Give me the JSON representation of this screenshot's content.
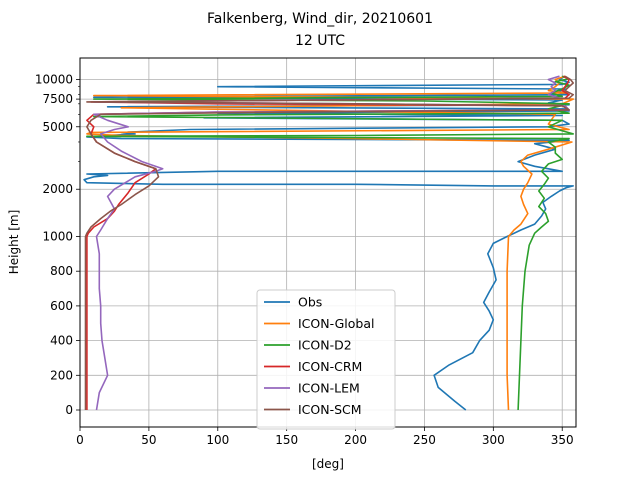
{
  "chart_data": {
    "type": "line",
    "title_line1": "Falkenberg, Wind_dir, 20210601",
    "title_line2": "12 UTC",
    "xlabel": "[deg]",
    "ylabel": "Height [m]",
    "xlim": [
      0,
      360
    ],
    "xticks": [
      0,
      50,
      100,
      150,
      200,
      250,
      300,
      350
    ],
    "yscale": "linear below 1000 m, logarithmic above",
    "yticks": [
      0,
      200,
      400,
      600,
      800,
      1000,
      2000,
      5000,
      7500,
      10000
    ],
    "grid": true,
    "legend_position": "lower center",
    "series": [
      {
        "name": "Obs",
        "color": "#1f77b4",
        "points": [
          [
            280,
            0
          ],
          [
            272,
            50
          ],
          [
            260,
            130
          ],
          [
            257,
            200
          ],
          [
            268,
            260
          ],
          [
            285,
            330
          ],
          [
            290,
            400
          ],
          [
            297,
            460
          ],
          [
            300,
            520
          ],
          [
            297,
            570
          ],
          [
            293,
            620
          ],
          [
            297,
            680
          ],
          [
            302,
            750
          ],
          [
            300,
            820
          ],
          [
            296,
            900
          ],
          [
            300,
            960
          ],
          [
            310,
            1000
          ],
          [
            320,
            1100
          ],
          [
            330,
            1200
          ],
          [
            335,
            1350
          ],
          [
            338,
            1500
          ],
          [
            336,
            1650
          ],
          [
            342,
            1800
          ],
          [
            348,
            1950
          ],
          [
            353,
            2050
          ],
          [
            358,
            2100
          ],
          [
            300,
            2100
          ],
          [
            200,
            2150
          ],
          [
            60,
            2150
          ],
          [
            5,
            2200
          ],
          [
            3,
            2300
          ],
          [
            10,
            2400
          ],
          [
            20,
            2450
          ],
          [
            5,
            2500
          ],
          [
            100,
            2600
          ],
          [
            350,
            2600
          ],
          [
            330,
            2800
          ],
          [
            318,
            3000
          ],
          [
            330,
            3300
          ],
          [
            345,
            3600
          ],
          [
            330,
            3900
          ],
          [
            355,
            4100
          ],
          [
            30,
            4200
          ],
          [
            5,
            4300
          ],
          [
            20,
            4400
          ],
          [
            40,
            4500
          ],
          [
            30,
            4600
          ],
          [
            80,
            4800
          ],
          [
            340,
            5000
          ],
          [
            355,
            5200
          ],
          [
            350,
            5500
          ],
          [
            90,
            5700
          ],
          [
            350,
            5900
          ],
          [
            100,
            6100
          ],
          [
            355,
            6300
          ],
          [
            352,
            6500
          ],
          [
            20,
            6700
          ],
          [
            355,
            6900
          ],
          [
            340,
            7100
          ],
          [
            350,
            7400
          ],
          [
            10,
            7700
          ],
          [
            355,
            8000
          ],
          [
            345,
            8300
          ],
          [
            353,
            8700
          ],
          [
            100,
            9000
          ],
          [
            350,
            9300
          ],
          [
            355,
            9600
          ],
          [
            348,
            10000
          ],
          [
            352,
            10500
          ]
        ]
      },
      {
        "name": "ICON-Global",
        "color": "#ff7f0e",
        "points": [
          [
            311,
            0
          ],
          [
            310,
            200
          ],
          [
            310,
            400
          ],
          [
            310,
            600
          ],
          [
            310,
            800
          ],
          [
            311,
            1000
          ],
          [
            315,
            1100
          ],
          [
            320,
            1200
          ],
          [
            325,
            1400
          ],
          [
            322,
            1600
          ],
          [
            320,
            1800
          ],
          [
            322,
            2000
          ],
          [
            325,
            2200
          ],
          [
            328,
            2500
          ],
          [
            322,
            2800
          ],
          [
            320,
            3000
          ],
          [
            325,
            3300
          ],
          [
            340,
            3600
          ],
          [
            357,
            4000
          ],
          [
            200,
            4200
          ],
          [
            30,
            4400
          ],
          [
            5,
            4500
          ],
          [
            8,
            4600
          ],
          [
            355,
            4800
          ],
          [
            340,
            5200
          ],
          [
            345,
            6000
          ],
          [
            30,
            6600
          ],
          [
            350,
            7000
          ],
          [
            358,
            7500
          ],
          [
            200,
            7700
          ],
          [
            10,
            7900
          ],
          [
            353,
            8200
          ],
          [
            340,
            8500
          ],
          [
            345,
            9000
          ],
          [
            348,
            9500
          ],
          [
            345,
            10000
          ],
          [
            352,
            10500
          ]
        ]
      },
      {
        "name": "ICON-D2",
        "color": "#2ca02c",
        "points": [
          [
            318,
            0
          ],
          [
            319,
            200
          ],
          [
            320,
            400
          ],
          [
            321,
            600
          ],
          [
            323,
            800
          ],
          [
            326,
            950
          ],
          [
            330,
            1050
          ],
          [
            335,
            1150
          ],
          [
            340,
            1250
          ],
          [
            338,
            1400
          ],
          [
            333,
            1550
          ],
          [
            337,
            1750
          ],
          [
            333,
            1950
          ],
          [
            337,
            2150
          ],
          [
            340,
            2350
          ],
          [
            335,
            2600
          ],
          [
            340,
            2900
          ],
          [
            350,
            3100
          ],
          [
            345,
            3400
          ],
          [
            345,
            3700
          ],
          [
            340,
            4000
          ],
          [
            355,
            4200
          ],
          [
            100,
            4300
          ],
          [
            5,
            4350
          ],
          [
            200,
            4400
          ],
          [
            358,
            4500
          ],
          [
            340,
            5000
          ],
          [
            350,
            5500
          ],
          [
            10,
            5800
          ],
          [
            100,
            5950
          ],
          [
            355,
            6100
          ],
          [
            340,
            6500
          ],
          [
            355,
            7000
          ],
          [
            250,
            7300
          ],
          [
            10,
            7500
          ],
          [
            350,
            7800
          ],
          [
            342,
            8200
          ],
          [
            350,
            8700
          ],
          [
            355,
            9200
          ],
          [
            345,
            9700
          ],
          [
            355,
            10100
          ],
          [
            350,
            10500
          ]
        ]
      },
      {
        "name": "ICON-CRM",
        "color": "#d62728",
        "points": [
          [
            5,
            0
          ],
          [
            5,
            200
          ],
          [
            5,
            400
          ],
          [
            5,
            600
          ],
          [
            5,
            800
          ],
          [
            5,
            1000
          ],
          [
            6,
            1050
          ],
          [
            10,
            1150
          ],
          [
            20,
            1300
          ],
          [
            25,
            1450
          ],
          [
            28,
            1600
          ],
          [
            35,
            1900
          ],
          [
            40,
            2200
          ],
          [
            50,
            2500
          ],
          [
            55,
            2700
          ],
          [
            40,
            3000
          ],
          [
            25,
            3400
          ],
          [
            12,
            4000
          ],
          [
            8,
            4500
          ],
          [
            10,
            5000
          ],
          [
            5,
            5500
          ],
          [
            10,
            6000
          ],
          [
            100,
            6200
          ],
          [
            355,
            6400
          ],
          [
            352,
            6800
          ],
          [
            100,
            7000
          ],
          [
            8,
            7200
          ],
          [
            352,
            7600
          ],
          [
            355,
            8000
          ],
          [
            350,
            8500
          ],
          [
            352,
            9000
          ],
          [
            354,
            9500
          ],
          [
            355,
            10000
          ],
          [
            351,
            10500
          ]
        ]
      },
      {
        "name": "ICON-LEM",
        "color": "#9467bd",
        "points": [
          [
            12,
            0
          ],
          [
            14,
            100
          ],
          [
            20,
            200
          ],
          [
            18,
            300
          ],
          [
            16,
            400
          ],
          [
            15,
            500
          ],
          [
            15,
            600
          ],
          [
            14,
            700
          ],
          [
            14,
            800
          ],
          [
            14,
            900
          ],
          [
            12,
            1000
          ],
          [
            15,
            1100
          ],
          [
            20,
            1300
          ],
          [
            25,
            1500
          ],
          [
            20,
            1800
          ],
          [
            25,
            2000
          ],
          [
            40,
            2400
          ],
          [
            55,
            2600
          ],
          [
            60,
            2700
          ],
          [
            45,
            3000
          ],
          [
            30,
            3500
          ],
          [
            20,
            4000
          ],
          [
            15,
            4500
          ],
          [
            25,
            4800
          ],
          [
            35,
            5000
          ],
          [
            20,
            5500
          ],
          [
            10,
            6000
          ],
          [
            100,
            6200
          ],
          [
            355,
            6400
          ],
          [
            352,
            6800
          ],
          [
            200,
            7000
          ],
          [
            10,
            7200
          ],
          [
            348,
            7600
          ],
          [
            340,
            8000
          ],
          [
            345,
            8500
          ],
          [
            342,
            9000
          ],
          [
            345,
            9500
          ],
          [
            340,
            10000
          ],
          [
            348,
            10500
          ]
        ]
      },
      {
        "name": "ICON-SCM",
        "color": "#8c564b",
        "points": [
          [
            4,
            0
          ],
          [
            4,
            200
          ],
          [
            4,
            400
          ],
          [
            4,
            600
          ],
          [
            4,
            800
          ],
          [
            4,
            1000
          ],
          [
            5,
            1050
          ],
          [
            8,
            1150
          ],
          [
            15,
            1300
          ],
          [
            22,
            1450
          ],
          [
            30,
            1600
          ],
          [
            40,
            1850
          ],
          [
            50,
            2100
          ],
          [
            57,
            2400
          ],
          [
            55,
            2700
          ],
          [
            40,
            3000
          ],
          [
            25,
            3400
          ],
          [
            12,
            4000
          ],
          [
            8,
            4500
          ],
          [
            5,
            5000
          ],
          [
            8,
            5500
          ],
          [
            15,
            6000
          ],
          [
            150,
            6200
          ],
          [
            355,
            6400
          ],
          [
            350,
            6800
          ],
          [
            200,
            7000
          ],
          [
            5,
            7200
          ],
          [
            355,
            7600
          ],
          [
            358,
            8000
          ],
          [
            352,
            8500
          ],
          [
            355,
            9000
          ],
          [
            358,
            9500
          ],
          [
            356,
            10000
          ],
          [
            352,
            10500
          ]
        ]
      }
    ]
  }
}
